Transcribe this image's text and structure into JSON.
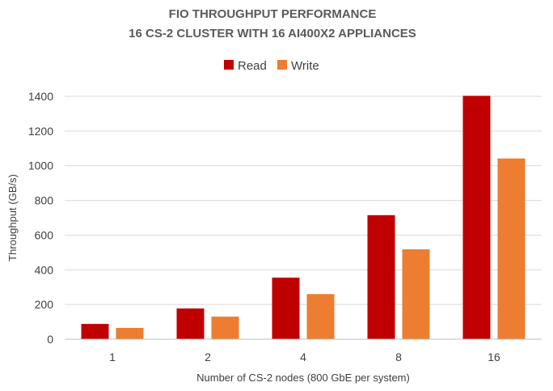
{
  "chart_data": {
    "type": "bar",
    "title": [
      "FIO THROUGHPUT PERFORMANCE",
      "16 CS-2 CLUSTER WITH 16 AI400X2 APPLIANCES"
    ],
    "xlabel": "Number of CS-2 nodes (800 GbE per system)",
    "ylabel": "Throughput (GB/s)",
    "categories": [
      "1",
      "2",
      "4",
      "8",
      "16"
    ],
    "series": [
      {
        "name": "Read",
        "color": "#c00000",
        "values": [
          88,
          177,
          355,
          715,
          1403
        ]
      },
      {
        "name": "Write",
        "color": "#ed7d31",
        "values": [
          65,
          130,
          260,
          518,
          1042
        ]
      }
    ],
    "ylim": [
      0,
      1400
    ],
    "yticks": [
      0,
      200,
      400,
      600,
      800,
      1000,
      1200,
      1400
    ],
    "grid": "horizontal",
    "legend_position": "top-center"
  }
}
